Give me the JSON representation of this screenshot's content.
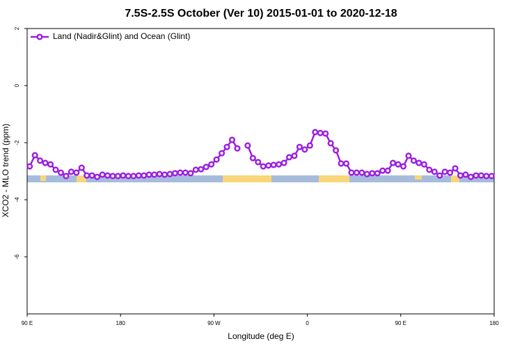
{
  "chart_data": {
    "type": "line",
    "title": "7.5S-2.5S October (Ver 10)   2015-01-01 to 2020-12-18",
    "x_label": "Longitude (deg E)",
    "y_label": "XCO2 - MLO trend (ppm)",
    "xlim": [
      90,
      540
    ],
    "xticks": [
      {
        "value": 90,
        "label": "90 E"
      },
      180,
      {
        "value": 270,
        "label": "90 W"
      },
      {
        "value": 360,
        "label": "0"
      },
      {
        "value": 450,
        "label": "90 E"
      },
      {
        "value": 540,
        "label": "180"
      }
    ],
    "ylim": [
      -8,
      2
    ],
    "yticks": [
      -6,
      -4,
      -2,
      0,
      2
    ],
    "legend_position": "top-left",
    "series": [
      {
        "name": "Land (Nadir&Glint) and Ocean (Glint)",
        "color": "#9b1fe0",
        "x": [
          92.5,
          97.5,
          102.5,
          107.5,
          112.5,
          117.5,
          122.5,
          127.5,
          132.5,
          137.5,
          142.5,
          147.5,
          152.5,
          157.5,
          162.5,
          167.5,
          172.5,
          177.5,
          182.5,
          187.5,
          192.5,
          197.5,
          202.5,
          207.5,
          212.5,
          217.5,
          222.5,
          227.5,
          232.5,
          237.5,
          242.5,
          247.5,
          252.5,
          257.5,
          262.5,
          267.5,
          272.5,
          277.5,
          282.5,
          287.5,
          292.5,
          297.5,
          302.5,
          307.5,
          312.5,
          317.5,
          322.5,
          327.5,
          332.5,
          337.5,
          342.5,
          347.5,
          352.5,
          357.5,
          362.5,
          367.5,
          372.5,
          377.5,
          382.5,
          387.5,
          392.5,
          397.5,
          402.5,
          407.5,
          412.5,
          417.5,
          422.5,
          427.5,
          432.5,
          437.5,
          442.5,
          447.5,
          452.5,
          457.5,
          462.5,
          467.5,
          472.5,
          477.5,
          482.5,
          487.5,
          492.5,
          497.5,
          502.5,
          507.5,
          512.5,
          517.5,
          522.5,
          527.5,
          532.5,
          537.5
        ],
        "values": [
          -2.83,
          -2.44,
          -2.63,
          -2.71,
          -2.76,
          -2.95,
          -3.05,
          -3.17,
          -3.02,
          -3.05,
          -2.88,
          -3.15,
          -3.15,
          -3.2,
          -3.12,
          -3.15,
          -3.17,
          -3.17,
          -3.15,
          -3.17,
          -3.17,
          -3.15,
          -3.15,
          -3.12,
          -3.12,
          -3.1,
          -3.12,
          -3.1,
          -3.07,
          -3.05,
          -3.05,
          -3.07,
          -2.95,
          -2.93,
          -2.85,
          -2.76,
          -2.59,
          -2.37,
          -2.15,
          -1.9,
          -2.2,
          null,
          -2.1,
          -2.54,
          -2.68,
          -2.83,
          -2.8,
          -2.78,
          -2.76,
          -2.71,
          -2.51,
          -2.46,
          -2.15,
          -2.24,
          -2.1,
          -1.63,
          -1.66,
          -1.68,
          -2.02,
          -2.27,
          -2.73,
          -2.73,
          -3.05,
          -3.05,
          -3.05,
          -3.1,
          -3.07,
          -3.07,
          -2.98,
          -2.98,
          -2.71,
          -2.76,
          -2.83,
          -2.46,
          -2.63,
          -2.71,
          -2.76,
          -2.95,
          -3.02,
          -3.15,
          -3.02,
          -3.05,
          -2.9,
          -3.15,
          -3.12,
          -3.2,
          -3.15,
          -3.15,
          -3.17,
          -3.17
        ]
      }
    ]
  }
}
